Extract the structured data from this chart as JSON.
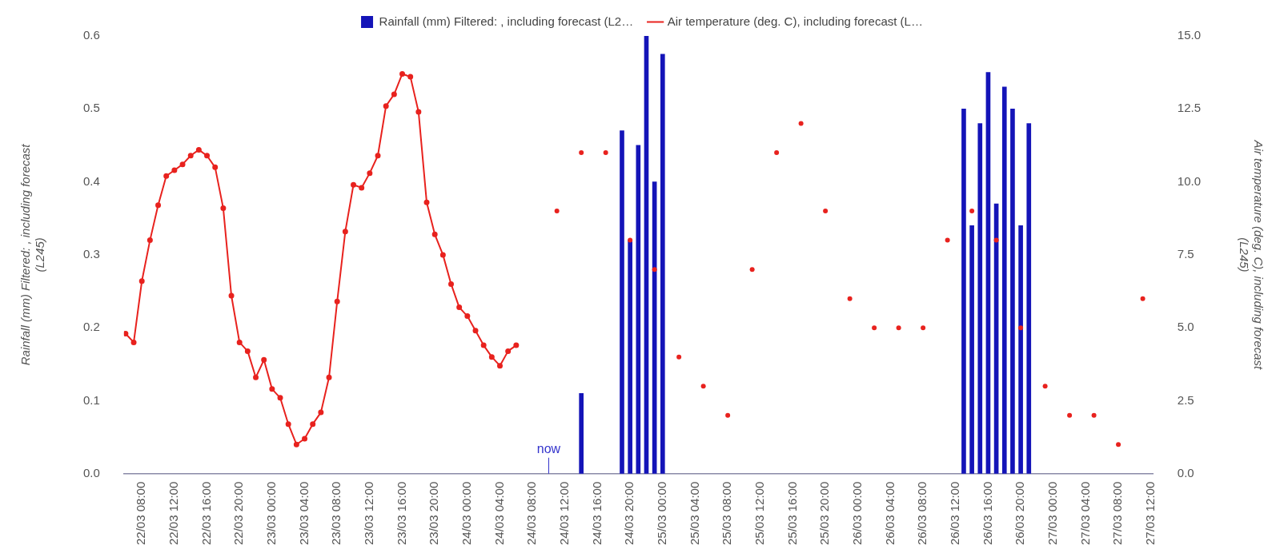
{
  "chart_data": {
    "type": "bar",
    "xlim": [
      "--03-22T05:48",
      "--03-27T12:18"
    ],
    "xticks": [
      {
        "value": "--03-22T08:00",
        "label": "22/03 08:00"
      },
      {
        "value": "--03-22T12:00",
        "label": "22/03 12:00"
      },
      {
        "value": "--03-22T16:00",
        "label": "22/03 16:00"
      },
      {
        "value": "--03-22T20:00",
        "label": "22/03 20:00"
      },
      {
        "value": "--03-23T00:00",
        "label": "23/03 00:00"
      },
      {
        "value": "--03-23T04:00",
        "label": "23/03 04:00"
      },
      {
        "value": "--03-23T08:00",
        "label": "23/03 08:00"
      },
      {
        "value": "--03-23T12:00",
        "label": "23/03 12:00"
      },
      {
        "value": "--03-23T16:00",
        "label": "23/03 16:00"
      },
      {
        "value": "--03-23T20:00",
        "label": "23/03 20:00"
      },
      {
        "value": "--03-24T00:00",
        "label": "24/03 00:00"
      },
      {
        "value": "--03-24T04:00",
        "label": "24/03 04:00"
      },
      {
        "value": "--03-24T08:00",
        "label": "24/03 08:00"
      },
      {
        "value": "--03-24T12:00",
        "label": "24/03 12:00"
      },
      {
        "value": "--03-24T16:00",
        "label": "24/03 16:00"
      },
      {
        "value": "--03-24T20:00",
        "label": "24/03 20:00"
      },
      {
        "value": "--03-25T00:00",
        "label": "25/03 00:00"
      },
      {
        "value": "--03-25T04:00",
        "label": "25/03 04:00"
      },
      {
        "value": "--03-25T08:00",
        "label": "25/03 08:00"
      },
      {
        "value": "--03-25T12:00",
        "label": "25/03 12:00"
      },
      {
        "value": "--03-25T16:00",
        "label": "25/03 16:00"
      },
      {
        "value": "--03-25T20:00",
        "label": "25/03 20:00"
      },
      {
        "value": "--03-26T00:00",
        "label": "26/03 00:00"
      },
      {
        "value": "--03-26T04:00",
        "label": "26/03 04:00"
      },
      {
        "value": "--03-26T08:00",
        "label": "26/03 08:00"
      },
      {
        "value": "--03-26T12:00",
        "label": "26/03 12:00"
      },
      {
        "value": "--03-26T16:00",
        "label": "26/03 16:00"
      },
      {
        "value": "--03-26T20:00",
        "label": "26/03 20:00"
      },
      {
        "value": "--03-27T00:00",
        "label": "27/03 00:00"
      },
      {
        "value": "--03-27T04:00",
        "label": "27/03 04:00"
      },
      {
        "value": "--03-27T08:00",
        "label": "27/03 08:00"
      },
      {
        "value": "--03-27T12:00",
        "label": "27/03 12:00"
      }
    ],
    "ylabel": "Rainfall (mm) Filtered: , including forecast\n(L245)",
    "y2label": "Air temperature (deg. C), including forecast\n(L245)",
    "ylim": [
      0,
      0.6
    ],
    "yticks": [
      {
        "value": 0,
        "label": "0.0"
      },
      {
        "value": 0.1,
        "label": "0.1"
      },
      {
        "value": 0.2,
        "label": "0.2"
      },
      {
        "value": 0.3,
        "label": "0.3"
      },
      {
        "value": 0.4,
        "label": "0.4"
      },
      {
        "value": 0.5,
        "label": "0.5"
      },
      {
        "value": 0.6,
        "label": "0.6"
      }
    ],
    "y2lim": [
      0,
      15
    ],
    "y2ticks": [
      {
        "value": 0,
        "label": "0.0"
      },
      {
        "value": 2.5,
        "label": "2.5"
      },
      {
        "value": 5,
        "label": "5.0"
      },
      {
        "value": 7.5,
        "label": "7.5"
      },
      {
        "value": 10,
        "label": "10.0"
      },
      {
        "value": 12.5,
        "label": "12.5"
      },
      {
        "value": 15,
        "label": "15.0"
      }
    ],
    "legend": "top",
    "ref_lines": [
      {
        "axis": "x",
        "value": "--03-24T10:00",
        "label": "now",
        "color": "#3333cc"
      }
    ],
    "series": [
      {
        "name": "Rainfall (mm) Filtered: , including forecast (L2…",
        "color": "#1414b8",
        "x": [
          "--03-24T14:00",
          "--03-24T19:00",
          "--03-24T20:00",
          "--03-24T21:00",
          "--03-24T22:00",
          "--03-24T23:00",
          "--03-25T00:00",
          "--03-26T13:00",
          "--03-26T14:00",
          "--03-26T15:00",
          "--03-26T16:00",
          "--03-26T17:00",
          "--03-26T18:00",
          "--03-26T19:00",
          "--03-26T20:00",
          "--03-26T21:00"
        ],
        "values": [
          0.11,
          0.47,
          0.32,
          0.45,
          0.6,
          0.4,
          0.575,
          0.5,
          0.34,
          0.48,
          0.55,
          0.37,
          0.53,
          0.5,
          0.34,
          0.48
        ]
      },
      {
        "type": "line",
        "name": "Air temperature (deg. C), including forecast (L…",
        "color": "#e8221e",
        "axis": "y2",
        "marker": "circle",
        "x": [
          "--03-22T06:00",
          "--03-22T07:00",
          "--03-22T08:00",
          "--03-22T09:00",
          "--03-22T10:00",
          "--03-22T11:00",
          "--03-22T12:00",
          "--03-22T13:00",
          "--03-22T14:00",
          "--03-22T15:00",
          "--03-22T16:00",
          "--03-22T17:00",
          "--03-22T18:00",
          "--03-22T19:00",
          "--03-22T20:00",
          "--03-22T21:00",
          "--03-22T22:00",
          "--03-22T23:00",
          "--03-23T00:00",
          "--03-23T01:00",
          "--03-23T02:00",
          "--03-23T03:00",
          "--03-23T04:00",
          "--03-23T05:00",
          "--03-23T06:00",
          "--03-23T07:00",
          "--03-23T08:00",
          "--03-23T09:00",
          "--03-23T10:00",
          "--03-23T11:00",
          "--03-23T12:00",
          "--03-23T13:00",
          "--03-23T14:00",
          "--03-23T15:00",
          "--03-23T16:00",
          "--03-23T17:00",
          "--03-23T18:00",
          "--03-23T19:00",
          "--03-23T20:00",
          "--03-23T21:00",
          "--03-23T22:00",
          "--03-23T23:00",
          "--03-24T00:00",
          "--03-24T01:00",
          "--03-24T02:00",
          "--03-24T03:00",
          "--03-24T04:00",
          "--03-24T05:00",
          "--03-24T06:00"
        ],
        "values": [
          4.8,
          4.5,
          6.6,
          8.0,
          9.2,
          10.2,
          10.4,
          10.6,
          10.9,
          11.1,
          10.9,
          10.5,
          9.1,
          6.1,
          4.5,
          4.2,
          3.3,
          3.9,
          2.9,
          2.6,
          1.7,
          1.0,
          1.2,
          1.7,
          2.1,
          3.3,
          5.9,
          8.3,
          9.9,
          9.8,
          10.3,
          10.9,
          12.6,
          13.0,
          13.7,
          13.6,
          12.4,
          9.3,
          8.2,
          7.5,
          6.5,
          5.7,
          5.4,
          4.9,
          4.4,
          4.0,
          3.7,
          4.2,
          4.4
        ]
      },
      {
        "type": "scatter",
        "color": "#e8221e",
        "axis": "y2",
        "marker": "circle",
        "x": [
          "--03-24T11:00",
          "--03-24T14:00",
          "--03-24T17:00",
          "--03-24T20:00",
          "--03-24T23:00",
          "--03-25T02:00",
          "--03-25T05:00",
          "--03-25T08:00",
          "--03-25T11:00",
          "--03-25T14:00",
          "--03-25T17:00",
          "--03-25T20:00",
          "--03-25T23:00",
          "--03-26T02:00",
          "--03-26T05:00",
          "--03-26T08:00",
          "--03-26T11:00",
          "--03-26T14:00",
          "--03-26T17:00",
          "--03-26T20:00",
          "--03-26T23:00",
          "--03-27T02:00",
          "--03-27T05:00",
          "--03-27T08:00",
          "--03-27T11:00"
        ],
        "values": [
          9,
          11,
          11,
          8,
          7,
          4,
          3,
          2,
          7,
          11,
          12,
          9,
          6,
          5,
          5,
          5,
          8,
          9,
          8,
          5,
          3,
          2,
          2,
          1,
          6
        ]
      }
    ]
  }
}
